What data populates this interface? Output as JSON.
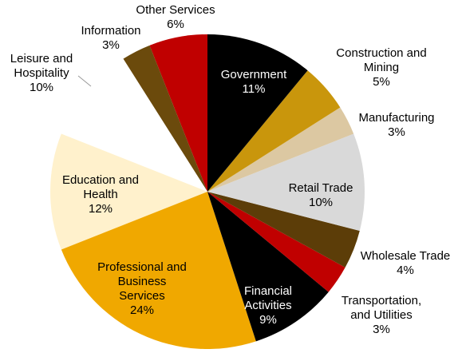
{
  "chart_data": {
    "type": "pie",
    "categories": [
      "Government",
      "Construction and\nMining",
      "Manufacturing",
      "Retail Trade",
      "Wholesale Trade",
      "Transportation,\nand Utilities",
      "Financial\nActivities",
      "Professional and\nBusiness\nServices",
      "Education and\nHealth",
      "Leisure and\nHospitality",
      "Information",
      "Other Services"
    ],
    "values": [
      11,
      5,
      3,
      10,
      4,
      3,
      9,
      24,
      12,
      10,
      3,
      6
    ],
    "value_labels": [
      "11%",
      "5%",
      "3%",
      "10%",
      "4%",
      "3%",
      "9%",
      "24%",
      "12%",
      "10%",
      "3%",
      "6%"
    ],
    "colors": [
      "#000000",
      "#c9960c",
      "#dcc8a2",
      "#d9d9d9",
      "#5c3d08",
      "#c00000",
      "#000000",
      "#f0a800",
      "#fff1cc",
      "#ffffff",
      "#6b4a0c",
      "#c00000"
    ]
  }
}
